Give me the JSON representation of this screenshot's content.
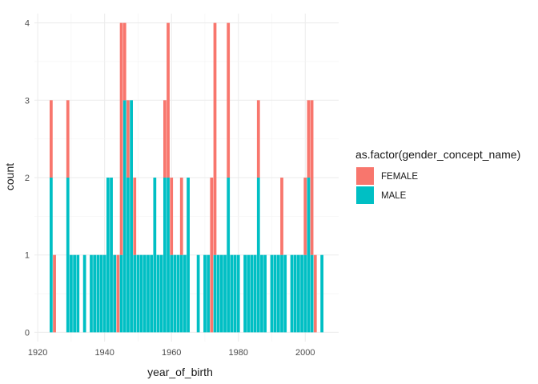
{
  "chart_data": {
    "type": "bar",
    "stacked": true,
    "xlabel": "year_of_birth",
    "ylabel": "count",
    "xlim": [
      1919,
      2010
    ],
    "ylim": [
      -0.12,
      4.12
    ],
    "x_ticks": [
      1920,
      1940,
      1960,
      1980,
      2000
    ],
    "y_ticks": [
      0,
      1,
      2,
      3,
      4
    ],
    "grid": true,
    "legend": {
      "title": "as.factor(gender_concept_name)",
      "position": "right"
    },
    "colors": {
      "FEMALE": "#F8766D",
      "MALE": "#00BFC4"
    },
    "x": [
      1924,
      1925,
      1926,
      1929,
      1930,
      1931,
      1932,
      1934,
      1936,
      1937,
      1938,
      1939,
      1940,
      1941,
      1942,
      1943,
      1944,
      1945,
      1946,
      1947,
      1948,
      1949,
      1950,
      1951,
      1952,
      1953,
      1954,
      1955,
      1956,
      1957,
      1958,
      1959,
      1960,
      1961,
      1962,
      1963,
      1964,
      1965,
      1968,
      1970,
      1971,
      1972,
      1973,
      1974,
      1975,
      1976,
      1977,
      1978,
      1979,
      1980,
      1982,
      1983,
      1984,
      1985,
      1986,
      1987,
      1988,
      1990,
      1991,
      1992,
      1993,
      1994,
      1996,
      1997,
      1998,
      1999,
      2000,
      2001,
      2002,
      2003,
      2005
    ],
    "series": [
      {
        "name": "MALE",
        "values": [
          2,
          0,
          0,
          2,
          1,
          1,
          1,
          1,
          1,
          1,
          1,
          1,
          1,
          2,
          2,
          1,
          0,
          1,
          3,
          2,
          3,
          1,
          1,
          1,
          1,
          1,
          1,
          2,
          1,
          1,
          2,
          2,
          1,
          1,
          1,
          1,
          1,
          2,
          1,
          1,
          1,
          0,
          1,
          1,
          1,
          1,
          2,
          1,
          1,
          1,
          1,
          1,
          1,
          1,
          2,
          1,
          1,
          1,
          1,
          1,
          1,
          1,
          1,
          1,
          1,
          1,
          1,
          2,
          1,
          0,
          1
        ]
      },
      {
        "name": "FEMALE",
        "values": [
          1,
          1,
          0,
          1,
          0,
          0,
          0,
          0,
          0,
          0,
          0,
          0,
          0,
          0,
          0,
          0,
          1,
          3,
          1,
          1,
          0,
          1,
          0,
          0,
          0,
          0,
          0,
          0,
          0,
          0,
          1,
          2,
          1,
          0,
          0,
          1,
          0,
          0,
          0,
          0,
          0,
          2,
          3,
          0,
          0,
          0,
          2,
          0,
          0,
          0,
          0,
          0,
          0,
          0,
          1,
          0,
          0,
          0,
          0,
          0,
          1,
          0,
          0,
          0,
          0,
          0,
          1,
          1,
          2,
          1,
          0
        ]
      }
    ]
  }
}
